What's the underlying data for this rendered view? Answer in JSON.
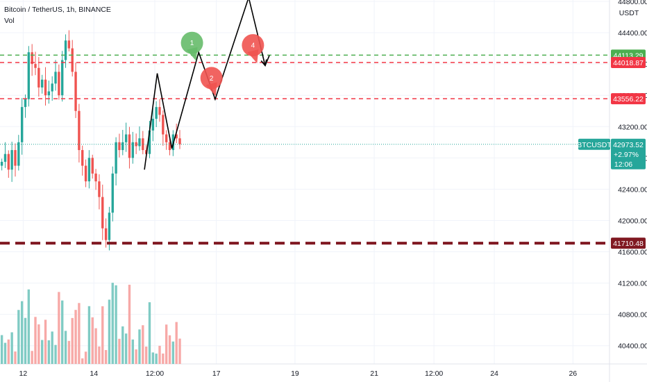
{
  "header": {
    "symbol_line": "Bitcoin / TetherUS, 1h, BINANCE",
    "indicator": "Vol"
  },
  "colors": {
    "up": "#26a69a",
    "down": "#ef5350",
    "vol_up": "#80cbc4",
    "vol_down": "#f7a9a7",
    "green_line": "#4caf50",
    "red_line": "#f23645",
    "dark_red": "#801922",
    "last_price": "#26a69a",
    "bubble_green": "#66bb6a",
    "bubble_red": "#ef5350"
  },
  "chart_data": {
    "type": "candlestick",
    "title": "Bitcoin / TetherUS, 1h, BINANCE",
    "yunit": "USDT",
    "ylim": [
      40300,
      44800
    ],
    "y_ticks": [
      "44800.00",
      "44400.00",
      "44000.00",
      "43600.00",
      "43200.00",
      "42800.00",
      "42400.00",
      "42000.00",
      "41600.00",
      "41200.00",
      "40800.00",
      "40400.00"
    ],
    "x_ticks": [
      "12",
      "14",
      "12:00",
      "17",
      "19",
      "21",
      "12:00",
      "24",
      "26"
    ],
    "grid": true,
    "horizontal_levels": [
      {
        "price": 44113.29,
        "label": "44113.29",
        "color": "green",
        "style": "dashed"
      },
      {
        "price": 44018.87,
        "label": "44018.87",
        "color": "red",
        "style": "dashed"
      },
      {
        "price": 43556.22,
        "label": "43556.22",
        "color": "red",
        "style": "dashed"
      },
      {
        "price": 41710.48,
        "label": "41710.48",
        "color": "dark-red",
        "style": "dashed-thick"
      }
    ],
    "last_price": {
      "symbol": "BTCUSDT",
      "price": 42973.52,
      "label": "42973.52",
      "change": "+2.97%",
      "countdown": "12:06"
    },
    "candle_close_path": [
      42750,
      42850,
      42650,
      42900,
      42700,
      43000,
      43450,
      43550,
      44150,
      44000,
      43950,
      43700,
      43800,
      43600,
      43650,
      43750,
      43900,
      43600,
      44050,
      44300,
      44200,
      43900,
      43400,
      42900,
      42700,
      42500,
      42800,
      42600,
      42500,
      42300,
      41900,
      41750,
      42100,
      42600,
      43000,
      42900,
      43000,
      43100,
      42800,
      43000,
      42950,
      43050,
      42900,
      42850,
      43150,
      43300,
      43450,
      43350,
      43100,
      43000,
      42900,
      43100,
      43050,
      42973.52
    ],
    "annotations": {
      "projection_path": [
        {
          "t": 0.237,
          "price": 42650
        },
        {
          "t": 0.258,
          "price": 43880
        },
        {
          "t": 0.282,
          "price": 42920
        },
        {
          "t": 0.326,
          "price": 44150
        },
        {
          "t": 0.353,
          "price": 43550
        },
        {
          "t": 0.408,
          "price": 44850
        },
        {
          "t": 0.435,
          "price": 43980
        }
      ],
      "projection_tail": {
        "t": 0.442,
        "price": 44110
      },
      "wave_labels": [
        {
          "label": "1",
          "t": 0.315,
          "price": 44270,
          "color": "green"
        },
        {
          "label": "2",
          "t": 0.347,
          "price": 43820,
          "color": "red"
        },
        {
          "label": "4",
          "t": 0.415,
          "price": 44240,
          "color": "red"
        }
      ]
    }
  }
}
